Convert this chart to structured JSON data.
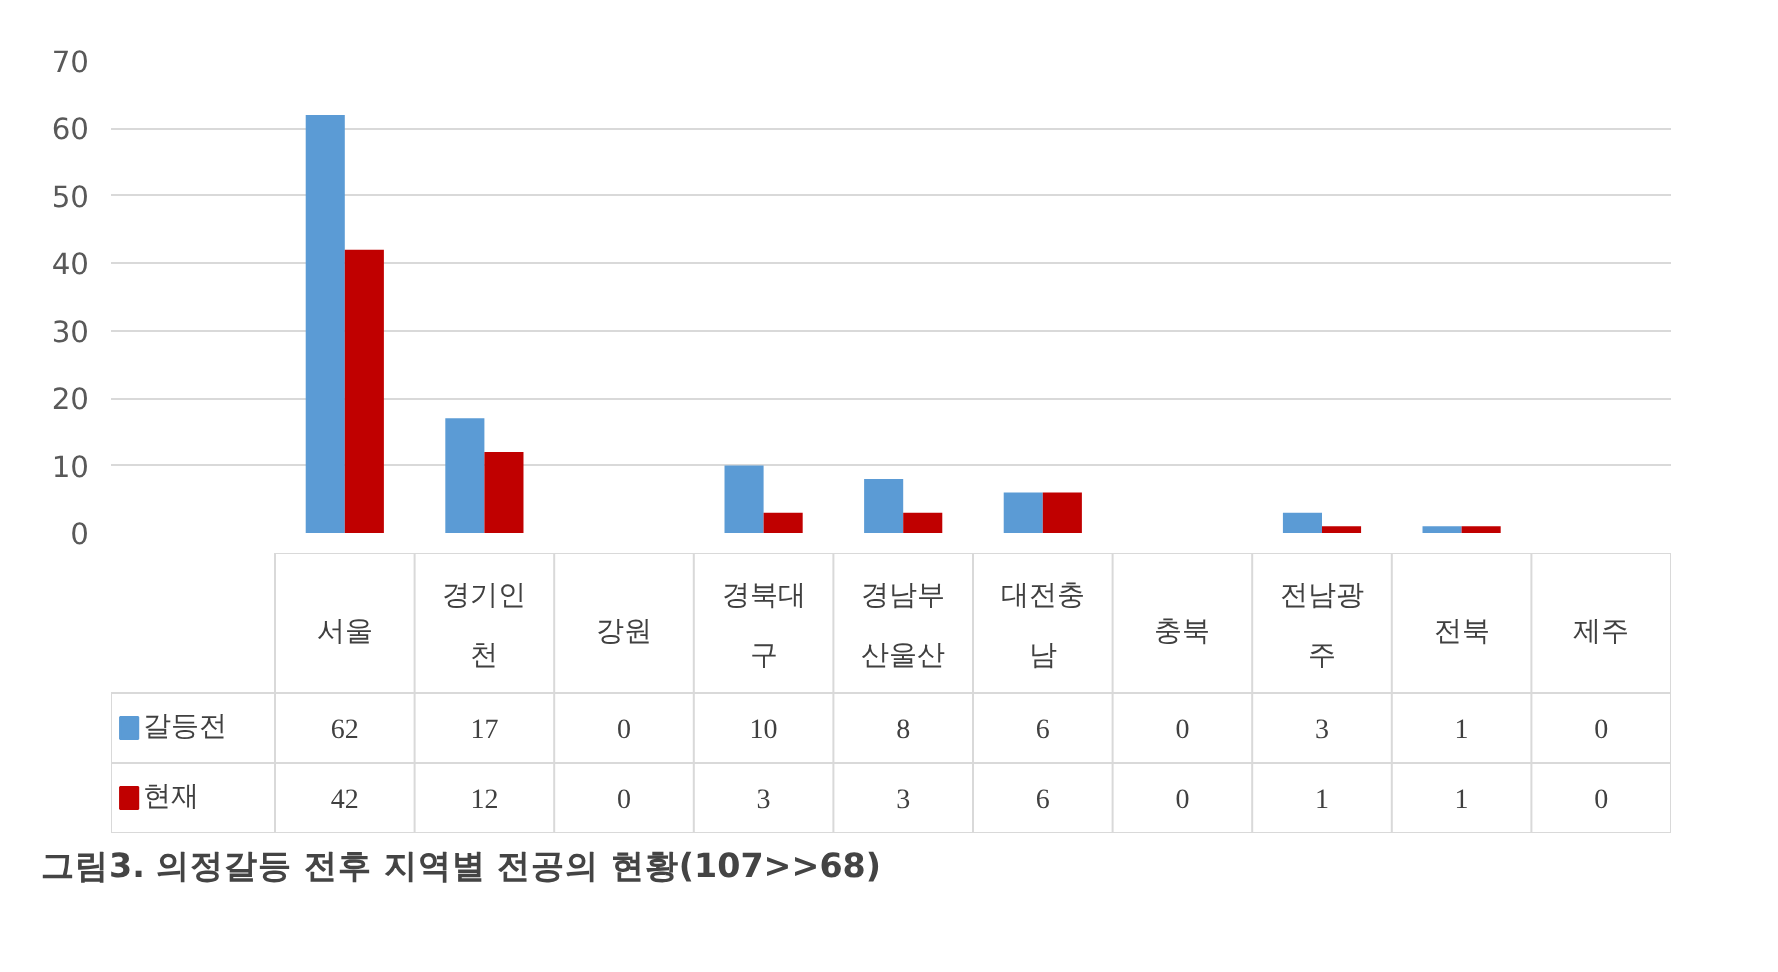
{
  "chart_data": {
    "type": "bar",
    "title": "그림3. 의정갈등 전후 지역별 전공의 현황(107>>68)",
    "categories": [
      "서울",
      "경기인천",
      "강원",
      "경북대구",
      "경남부산울산",
      "대전충남",
      "충북",
      "전남광주",
      "전북",
      "제주"
    ],
    "series": [
      {
        "name": "갈등전",
        "color": "#5b9bd5",
        "values": [
          62,
          17,
          0,
          10,
          8,
          6,
          0,
          3,
          1,
          0
        ]
      },
      {
        "name": "현재",
        "color": "#c00000",
        "values": [
          42,
          12,
          0,
          3,
          3,
          6,
          0,
          1,
          1,
          0
        ]
      }
    ],
    "ylim": [
      0,
      70
    ],
    "yticks": [
      0,
      10,
      20,
      30,
      40,
      50,
      60,
      70
    ],
    "grid": "y",
    "legend": "bottom",
    "data_labels": true
  }
}
